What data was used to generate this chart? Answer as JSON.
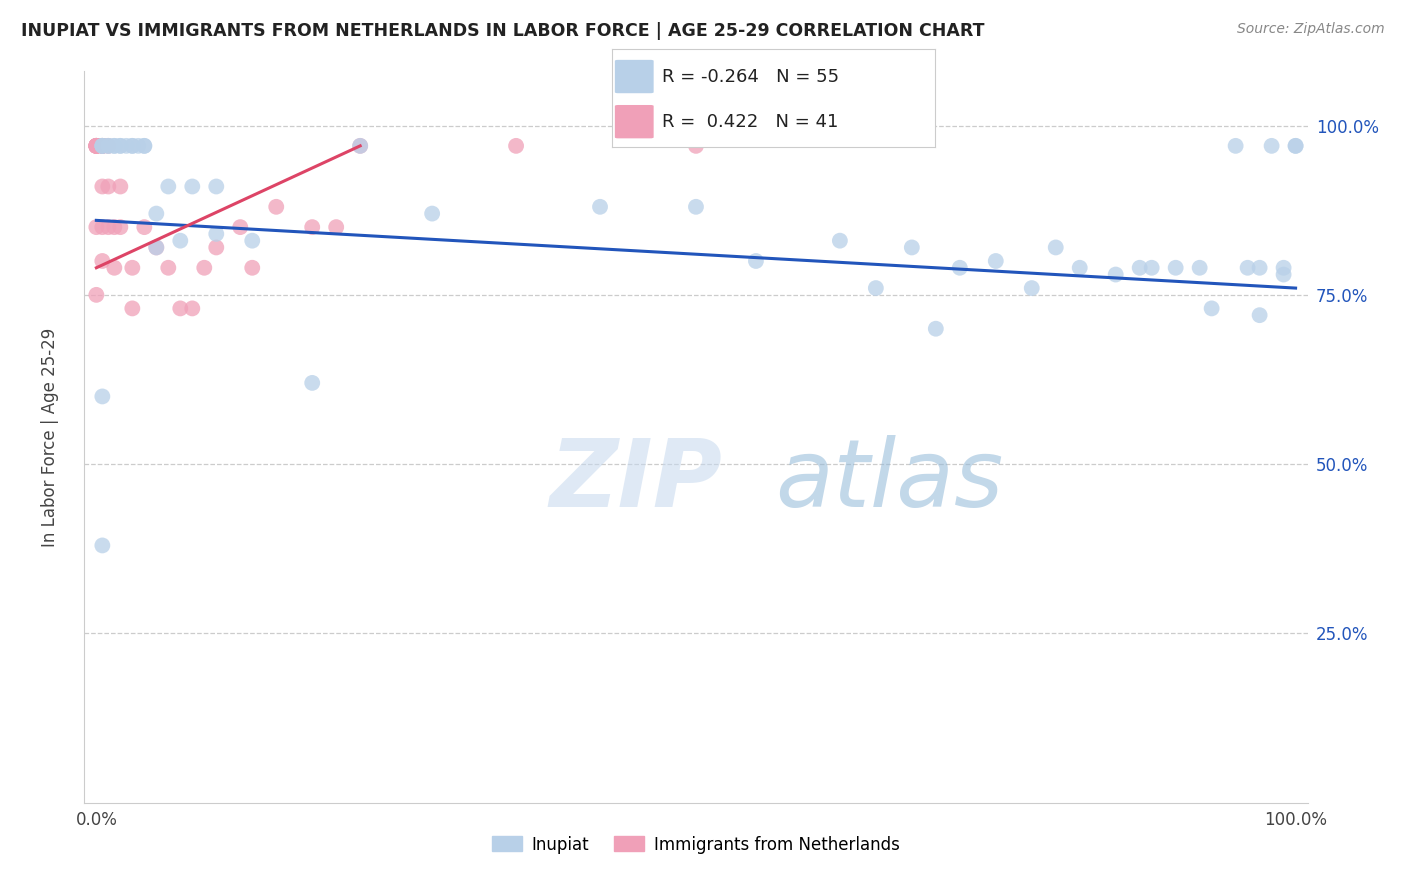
{
  "title": "INUPIAT VS IMMIGRANTS FROM NETHERLANDS IN LABOR FORCE | AGE 25-29 CORRELATION CHART",
  "source": "Source: ZipAtlas.com",
  "ylabel": "In Labor Force | Age 25-29",
  "legend_r_blue": "-0.264",
  "legend_n_blue": "55",
  "legend_r_pink": "0.422",
  "legend_n_pink": "41",
  "watermark_zip": "ZIP",
  "watermark_atlas": "atlas",
  "blue_scatter_color": "#b8d0e8",
  "pink_scatter_color": "#f0a0b8",
  "blue_line_color": "#2255bb",
  "pink_line_color": "#dd4466",
  "right_label_color": "#2255bb",
  "grid_color": "#cccccc",
  "inupiat_x": [
    0.005,
    0.005,
    0.005,
    0.01,
    0.01,
    0.015,
    0.015,
    0.02,
    0.02,
    0.025,
    0.03,
    0.03,
    0.035,
    0.04,
    0.04,
    0.05,
    0.05,
    0.06,
    0.07,
    0.08,
    0.1,
    0.1,
    0.13,
    0.18,
    0.22,
    0.28,
    0.42,
    0.5,
    0.55,
    0.62,
    0.65,
    0.68,
    0.7,
    0.72,
    0.75,
    0.78,
    0.8,
    0.82,
    0.85,
    0.87,
    0.88,
    0.9,
    0.92,
    0.93,
    0.95,
    0.96,
    0.97,
    0.97,
    0.98,
    0.99,
    0.99,
    1.0,
    1.0,
    0.005,
    0.005
  ],
  "inupiat_y": [
    0.97,
    0.97,
    0.97,
    0.97,
    0.97,
    0.97,
    0.97,
    0.97,
    0.97,
    0.97,
    0.97,
    0.97,
    0.97,
    0.97,
    0.97,
    0.82,
    0.87,
    0.91,
    0.83,
    0.91,
    0.84,
    0.91,
    0.83,
    0.62,
    0.97,
    0.87,
    0.88,
    0.88,
    0.8,
    0.83,
    0.76,
    0.82,
    0.7,
    0.79,
    0.8,
    0.76,
    0.82,
    0.79,
    0.78,
    0.79,
    0.79,
    0.79,
    0.79,
    0.73,
    0.97,
    0.79,
    0.79,
    0.72,
    0.97,
    0.78,
    0.79,
    0.97,
    0.97,
    0.38,
    0.6
  ],
  "netherlands_x": [
    0.0,
    0.0,
    0.0,
    0.0,
    0.0,
    0.0,
    0.0,
    0.0,
    0.0,
    0.0,
    0.005,
    0.005,
    0.005,
    0.005,
    0.005,
    0.005,
    0.005,
    0.01,
    0.01,
    0.01,
    0.015,
    0.015,
    0.02,
    0.02,
    0.03,
    0.03,
    0.04,
    0.05,
    0.06,
    0.07,
    0.08,
    0.09,
    0.1,
    0.12,
    0.13,
    0.15,
    0.18,
    0.2,
    0.22,
    0.35,
    0.5
  ],
  "netherlands_y": [
    0.97,
    0.97,
    0.97,
    0.97,
    0.97,
    0.97,
    0.97,
    0.97,
    0.85,
    0.75,
    0.97,
    0.97,
    0.97,
    0.97,
    0.91,
    0.85,
    0.8,
    0.97,
    0.91,
    0.85,
    0.85,
    0.79,
    0.91,
    0.85,
    0.79,
    0.73,
    0.85,
    0.82,
    0.79,
    0.73,
    0.73,
    0.79,
    0.82,
    0.85,
    0.79,
    0.88,
    0.85,
    0.85,
    0.97,
    0.97,
    0.97
  ],
  "blue_line_x": [
    0.0,
    1.0
  ],
  "blue_line_y": [
    0.86,
    0.76
  ],
  "pink_line_x": [
    0.0,
    0.22
  ],
  "pink_line_y": [
    0.79,
    0.97
  ],
  "xlim": [
    -0.01,
    1.01
  ],
  "ylim": [
    0.0,
    1.08
  ],
  "yticks": [
    0.0,
    0.25,
    0.5,
    0.75,
    1.0
  ],
  "xticks": [
    0.0,
    0.1,
    0.2,
    0.3,
    0.4,
    0.5,
    0.6,
    0.7,
    0.8,
    0.9,
    1.0
  ]
}
